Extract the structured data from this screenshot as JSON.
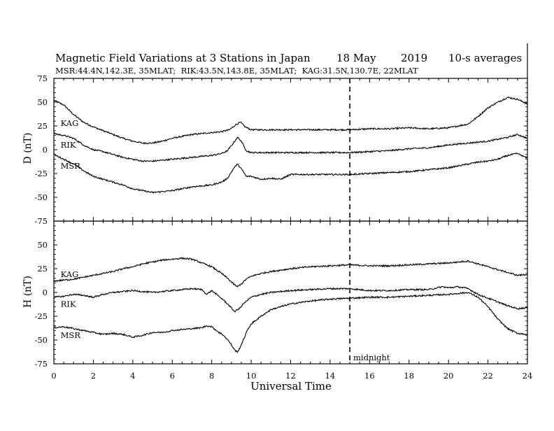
{
  "chart_data": {
    "type": "line",
    "title": "Magnetic Field Variations at 3 Stations in Japan",
    "date": "18 May",
    "year": "2019",
    "averaging": "10-s averages",
    "subtitle": "MSR:44.4N,142.3E, 35MLAT;  RIK:43.5N,143.8E, 35MLAT;  KAG:31.5N,130.7E, 22MLAT",
    "xlabel": "Universal Time",
    "xlim": [
      0,
      24
    ],
    "x_ticks": [
      "0",
      "2",
      "4",
      "6",
      "8",
      "10",
      "12",
      "14",
      "16",
      "18",
      "20",
      "22",
      "24"
    ],
    "midnight_ut": 15,
    "midnight_label": "midnight",
    "line_color": "#000000",
    "grid": false,
    "panels": [
      {
        "ylabel": "D (nT)",
        "ylim": [
          -75,
          75
        ],
        "y_ticks": [
          "75",
          "50",
          "25",
          "0",
          "-25",
          "-50",
          "-75"
        ],
        "series": [
          {
            "name": "KAG",
            "label_x": 0.2,
            "label_y": 28,
            "x": [
              0,
              0.5,
              1,
              1.5,
              2,
              2.5,
              3,
              3.5,
              4,
              4.5,
              5,
              5.5,
              6,
              6.5,
              7,
              7.5,
              8,
              8.5,
              8.9,
              9.2,
              9.45,
              9.7,
              10,
              10.5,
              11,
              12,
              13,
              14,
              15,
              16,
              17,
              18,
              19,
              20,
              20.5,
              21,
              21.5,
              22,
              22.5,
              23,
              23.5,
              24
            ],
            "y": [
              52,
              47,
              37,
              29,
              24,
              20,
              16,
              12,
              9,
              7,
              7,
              9,
              12,
              14,
              16,
              17,
              18,
              19,
              21,
              26,
              29,
              24,
              21,
              21,
              21,
              21,
              21,
              21,
              21,
              22,
              22,
              23,
              22,
              23,
              25,
              27,
              35,
              44,
              50,
              55,
              53,
              48
            ]
          },
          {
            "name": "RIK",
            "label_x": 0.2,
            "label_y": 5,
            "x": [
              0,
              0.5,
              1,
              1.5,
              2,
              2.5,
              3,
              3.5,
              4,
              4.5,
              5,
              5.5,
              6,
              6.5,
              7,
              7.5,
              8,
              8.5,
              8.8,
              9.1,
              9.3,
              9.5,
              9.75,
              10,
              10.5,
              11,
              12,
              13,
              14,
              15,
              16,
              17,
              18,
              19,
              20,
              20.5,
              21,
              21.5,
              22,
              22.5,
              23,
              23.5,
              24
            ],
            "y": [
              17,
              15,
              12,
              5,
              0,
              -2,
              -5,
              -8,
              -10,
              -12,
              -12,
              -11,
              -10,
              -9,
              -8,
              -7,
              -6,
              -4,
              -1,
              7,
              13,
              9,
              -1,
              -3,
              -3,
              -3,
              -3,
              -3,
              -3,
              -3,
              -2,
              -1,
              1,
              2,
              5,
              6,
              7,
              8,
              9,
              11,
              13,
              16,
              12
            ]
          },
          {
            "name": "MSR",
            "label_x": 0.2,
            "label_y": -17,
            "x": [
              0,
              0.5,
              1,
              1.5,
              2,
              2.5,
              3,
              3.5,
              4,
              4.5,
              5,
              5.5,
              6,
              6.5,
              7,
              7.5,
              8,
              8.5,
              8.8,
              9.1,
              9.3,
              9.5,
              9.75,
              10,
              10.5,
              11,
              11.5,
              12,
              13,
              14,
              15,
              16,
              17,
              18,
              19,
              20,
              20.5,
              21,
              21.5,
              22,
              22.5,
              23,
              23.5,
              24
            ],
            "y": [
              -5,
              -10,
              -15,
              -22,
              -28,
              -31,
              -34,
              -37,
              -41,
              -43,
              -45,
              -44,
              -43,
              -41,
              -39,
              -38,
              -37,
              -34,
              -30,
              -20,
              -15,
              -20,
              -28,
              -28,
              -31,
              -30,
              -31,
              -26,
              -26,
              -26,
              -26,
              -25,
              -24,
              -23,
              -21,
              -19,
              -17,
              -15,
              -13,
              -12,
              -10,
              -6,
              -4,
              -9
            ]
          }
        ]
      },
      {
        "ylabel": "H (nT)",
        "ylim": [
          -75,
          75
        ],
        "y_ticks": [
          "75",
          "50",
          "25",
          "0",
          "-25",
          "-50",
          "-75"
        ],
        "series": [
          {
            "name": "KAG",
            "label_x": 0.2,
            "label_y": 19,
            "x": [
              0,
              0.5,
              1,
              1.5,
              2,
              2.5,
              3,
              3.5,
              4,
              4.5,
              5,
              5.5,
              6,
              6.5,
              7,
              7.5,
              8,
              8.5,
              8.8,
              9.1,
              9.3,
              9.5,
              9.75,
              10,
              10.5,
              11,
              12,
              13,
              14,
              15,
              16,
              17,
              18,
              19,
              20,
              20.5,
              21,
              21.5,
              22,
              22.5,
              23,
              23.5,
              24
            ],
            "y": [
              12,
              13,
              14,
              16,
              18,
              20,
              22,
              25,
              27,
              30,
              32,
              34,
              35,
              36,
              35,
              31,
              27,
              20,
              15,
              9,
              6,
              9,
              14,
              17,
              20,
              22,
              25,
              27,
              28,
              29,
              28,
              28,
              29,
              30,
              31,
              32,
              33,
              30,
              27,
              24,
              21,
              18,
              19
            ]
          },
          {
            "name": "RIK",
            "label_x": 0.2,
            "label_y": -12,
            "x": [
              0,
              0.5,
              1,
              1.5,
              2,
              2.5,
              3,
              3.5,
              4,
              4.5,
              5,
              5.5,
              6,
              6.5,
              7,
              7.5,
              7.75,
              8,
              8.3,
              8.6,
              8.9,
              9.15,
              9.4,
              9.6,
              10,
              10.5,
              11,
              12,
              13,
              14,
              15,
              16,
              17,
              18,
              19,
              19.7,
              20,
              20.5,
              21,
              21.5,
              22,
              22.5,
              23,
              23.5,
              24
            ],
            "y": [
              -5,
              -4,
              -2,
              -3,
              -5,
              -2,
              0,
              1,
              2,
              1,
              0,
              1,
              2,
              3,
              4,
              3,
              -2,
              2,
              -3,
              -8,
              -14,
              -20,
              -17,
              -12,
              -5,
              -2,
              0,
              2,
              3,
              4,
              4,
              2,
              2,
              3,
              3,
              6,
              5,
              6,
              4,
              -2,
              -6,
              -10,
              -14,
              -17,
              -16
            ]
          },
          {
            "name": "MSR",
            "label_x": 0.2,
            "label_y": -45,
            "x": [
              0,
              0.5,
              1,
              1.5,
              2,
              2.5,
              3,
              3.5,
              4,
              4.5,
              5,
              5.5,
              6,
              6.5,
              7,
              7.5,
              7.75,
              8,
              8.3,
              8.6,
              8.9,
              9.15,
              9.3,
              9.5,
              9.8,
              10,
              10.5,
              11,
              12,
              13,
              14,
              15,
              16,
              17,
              18,
              19,
              20,
              20.5,
              21,
              21.5,
              22,
              22.5,
              23,
              23.5,
              24
            ],
            "y": [
              -37,
              -36,
              -38,
              -40,
              -42,
              -44,
              -43,
              -44,
              -47,
              -45,
              -42,
              -42,
              -40,
              -39,
              -38,
              -37,
              -35,
              -36,
              -41,
              -45,
              -52,
              -60,
              -63,
              -55,
              -40,
              -33,
              -25,
              -18,
              -12,
              -9,
              -7,
              -6,
              -5,
              -5,
              -4,
              -3,
              -2,
              -1,
              0,
              -5,
              -15,
              -28,
              -38,
              -43,
              -44
            ]
          }
        ]
      }
    ]
  }
}
